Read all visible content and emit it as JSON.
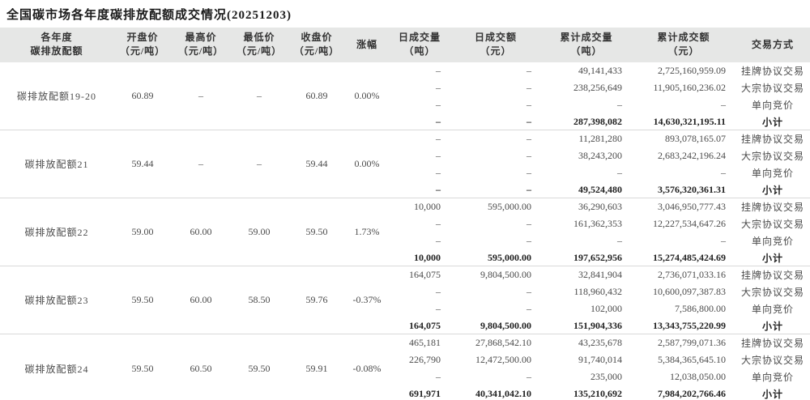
{
  "title": "全国碳市场各年度碳排放配额成交情况(20251203)",
  "colors": {
    "header_bg": "#e6e7e6",
    "separator": "#d9d9d9",
    "text": "#4b4b4b",
    "bold_text": "#222222"
  },
  "table": {
    "headers": [
      {
        "l1": "各年度",
        "l2": "碳排放配额"
      },
      {
        "l1": "开盘价",
        "l2": "（元/吨）"
      },
      {
        "l1": "最高价",
        "l2": "（元/吨）"
      },
      {
        "l1": "最低价",
        "l2": "（元/吨）"
      },
      {
        "l1": "收盘价",
        "l2": "（元/吨）"
      },
      {
        "l1": "涨幅",
        "l2": ""
      },
      {
        "l1": "日成交量",
        "l2": "（吨）"
      },
      {
        "l1": "日成交额",
        "l2": "（元）"
      },
      {
        "l1": "累计成交量",
        "l2": "（吨）"
      },
      {
        "l1": "累计成交额",
        "l2": "（元）"
      },
      {
        "l1": "交易方式",
        "l2": ""
      }
    ],
    "blocks": [
      {
        "name": "碳排放配额19-20",
        "open": "60.89",
        "high": "–",
        "low": "–",
        "close": "60.89",
        "change": "0.00%",
        "rows": [
          {
            "daily_volume": "–",
            "daily_amount": "–",
            "cum_volume": "49,141,433",
            "cum_amount": "2,725,160,959.09",
            "method": "挂牌协议交易",
            "subtotal": false
          },
          {
            "daily_volume": "–",
            "daily_amount": "–",
            "cum_volume": "238,256,649",
            "cum_amount": "11,905,160,236.02",
            "method": "大宗协议交易",
            "subtotal": false
          },
          {
            "daily_volume": "–",
            "daily_amount": "–",
            "cum_volume": "–",
            "cum_amount": "–",
            "method": "单向竞价",
            "subtotal": false
          },
          {
            "daily_volume": "–",
            "daily_amount": "–",
            "cum_volume": "287,398,082",
            "cum_amount": "14,630,321,195.11",
            "method": "小计",
            "subtotal": true
          }
        ]
      },
      {
        "name": "碳排放配额21",
        "open": "59.44",
        "high": "–",
        "low": "–",
        "close": "59.44",
        "change": "0.00%",
        "rows": [
          {
            "daily_volume": "–",
            "daily_amount": "–",
            "cum_volume": "11,281,280",
            "cum_amount": "893,078,165.07",
            "method": "挂牌协议交易",
            "subtotal": false
          },
          {
            "daily_volume": "–",
            "daily_amount": "–",
            "cum_volume": "38,243,200",
            "cum_amount": "2,683,242,196.24",
            "method": "大宗协议交易",
            "subtotal": false
          },
          {
            "daily_volume": "–",
            "daily_amount": "–",
            "cum_volume": "–",
            "cum_amount": "–",
            "method": "单向竞价",
            "subtotal": false
          },
          {
            "daily_volume": "–",
            "daily_amount": "–",
            "cum_volume": "49,524,480",
            "cum_amount": "3,576,320,361.31",
            "method": "小计",
            "subtotal": true
          }
        ]
      },
      {
        "name": "碳排放配额22",
        "open": "59.00",
        "high": "60.00",
        "low": "59.00",
        "close": "59.50",
        "change": "1.73%",
        "rows": [
          {
            "daily_volume": "10,000",
            "daily_amount": "595,000.00",
            "cum_volume": "36,290,603",
            "cum_amount": "3,046,950,777.43",
            "method": "挂牌协议交易",
            "subtotal": false
          },
          {
            "daily_volume": "–",
            "daily_amount": "–",
            "cum_volume": "161,362,353",
            "cum_amount": "12,227,534,647.26",
            "method": "大宗协议交易",
            "subtotal": false
          },
          {
            "daily_volume": "–",
            "daily_amount": "–",
            "cum_volume": "–",
            "cum_amount": "–",
            "method": "单向竞价",
            "subtotal": false
          },
          {
            "daily_volume": "10,000",
            "daily_amount": "595,000.00",
            "cum_volume": "197,652,956",
            "cum_amount": "15,274,485,424.69",
            "method": "小计",
            "subtotal": true
          }
        ]
      },
      {
        "name": "碳排放配额23",
        "open": "59.50",
        "high": "60.00",
        "low": "58.50",
        "close": "59.76",
        "change": "-0.37%",
        "rows": [
          {
            "daily_volume": "164,075",
            "daily_amount": "9,804,500.00",
            "cum_volume": "32,841,904",
            "cum_amount": "2,736,071,033.16",
            "method": "挂牌协议交易",
            "subtotal": false
          },
          {
            "daily_volume": "–",
            "daily_amount": "–",
            "cum_volume": "118,960,432",
            "cum_amount": "10,600,097,387.83",
            "method": "大宗协议交易",
            "subtotal": false
          },
          {
            "daily_volume": "–",
            "daily_amount": "–",
            "cum_volume": "102,000",
            "cum_amount": "7,586,800.00",
            "method": "单向竞价",
            "subtotal": false
          },
          {
            "daily_volume": "164,075",
            "daily_amount": "9,804,500.00",
            "cum_volume": "151,904,336",
            "cum_amount": "13,343,755,220.99",
            "method": "小计",
            "subtotal": true
          }
        ]
      },
      {
        "name": "碳排放配额24",
        "open": "59.50",
        "high": "60.50",
        "low": "59.50",
        "close": "59.91",
        "change": "-0.08%",
        "rows": [
          {
            "daily_volume": "465,181",
            "daily_amount": "27,868,542.10",
            "cum_volume": "43,235,678",
            "cum_amount": "2,587,799,071.36",
            "method": "挂牌协议交易",
            "subtotal": false
          },
          {
            "daily_volume": "226,790",
            "daily_amount": "12,472,500.00",
            "cum_volume": "91,740,014",
            "cum_amount": "5,384,365,645.10",
            "method": "大宗协议交易",
            "subtotal": false
          },
          {
            "daily_volume": "–",
            "daily_amount": "–",
            "cum_volume": "235,000",
            "cum_amount": "12,038,050.00",
            "method": "单向竞价",
            "subtotal": false
          },
          {
            "daily_volume": "691,971",
            "daily_amount": "40,341,042.10",
            "cum_volume": "135,210,692",
            "cum_amount": "7,984,202,766.46",
            "method": "小计",
            "subtotal": true
          }
        ]
      }
    ]
  }
}
